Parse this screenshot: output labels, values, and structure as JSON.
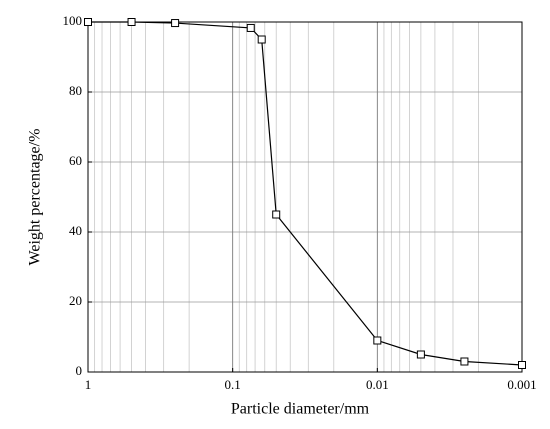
{
  "chart_data": {
    "type": "line",
    "x_label": "Particle diameter/mm",
    "y_label": "Weight percentage/%",
    "x": [
      1,
      0.5,
      0.25,
      0.075,
      0.063,
      0.05,
      0.01,
      0.005,
      0.0025,
      0.001
    ],
    "y": [
      100,
      100,
      99.7,
      98.3,
      95,
      45,
      9,
      5,
      3,
      2
    ],
    "color": "#000000",
    "marker": "square",
    "xlim": [
      1,
      0.001
    ],
    "xticks": [
      1,
      0.1,
      0.01,
      0.001
    ],
    "xscale": "log",
    "ylim": [
      0,
      100
    ],
    "yticks": [
      0,
      20,
      40,
      60,
      80,
      100
    ],
    "grid": true,
    "minor_grid": true
  }
}
